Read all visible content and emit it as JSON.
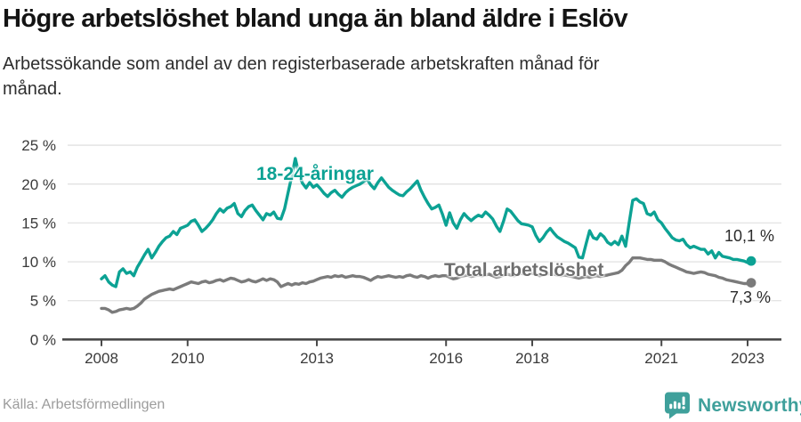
{
  "header": {
    "title": "Högre arbetslöshet bland unga än bland äldre i Eslöv",
    "subtitle_lines": [
      "Arbetssökande som andel av den registerbaserade arbetskraften månad för",
      "månad."
    ]
  },
  "chart_data": {
    "type": "line",
    "title": "Högre arbetslöshet bland unga än bland äldre i Eslöv",
    "subtitle": "Arbetssökande som andel av den registerbaserade arbetskraften månad för månad.",
    "x_start_year": 2008,
    "x_end_label": "feb 2023",
    "months": 182,
    "ylim": [
      0,
      25
    ],
    "grid": true,
    "legend_position": "inline-labels",
    "y_ticks": [
      {
        "value": 0,
        "label": "0 %"
      },
      {
        "value": 5,
        "label": "5 %"
      },
      {
        "value": 10,
        "label": "10 %"
      },
      {
        "value": 15,
        "label": "15 %"
      },
      {
        "value": 20,
        "label": "20 %"
      },
      {
        "value": 25,
        "label": "25 %"
      }
    ],
    "x_ticks": [
      {
        "year": 2008,
        "label": "2008"
      },
      {
        "year": 2010,
        "label": "2010"
      },
      {
        "year": 2013,
        "label": "2013"
      },
      {
        "year": 2016,
        "label": "2016"
      },
      {
        "year": 2018,
        "label": "2018"
      },
      {
        "year": 2021,
        "label": "2021"
      },
      {
        "year": 2023,
        "label": "2023"
      }
    ],
    "series": [
      {
        "name": "18-24-åringar",
        "color": "#0ca294",
        "end_label": "10,1 %",
        "end_value": 10.1,
        "values": [
          7.8,
          8.2,
          7.4,
          7.0,
          6.8,
          8.7,
          9.1,
          8.5,
          8.7,
          8.2,
          9.3,
          10.1,
          10.9,
          11.6,
          10.5,
          11.2,
          12.0,
          12.6,
          13.1,
          13.3,
          13.9,
          13.5,
          14.3,
          14.5,
          14.7,
          15.2,
          15.4,
          14.7,
          13.9,
          14.3,
          14.8,
          15.4,
          16.2,
          16.8,
          16.4,
          16.9,
          17.1,
          17.5,
          16.2,
          15.8,
          16.6,
          17.1,
          17.3,
          16.6,
          16.0,
          15.4,
          16.2,
          16.0,
          16.4,
          15.6,
          15.5,
          16.8,
          18.9,
          21.0,
          23.3,
          21.3,
          20.1,
          19.5,
          20.2,
          19.6,
          19.9,
          19.4,
          18.8,
          18.4,
          18.9,
          19.2,
          18.7,
          18.3,
          18.9,
          19.3,
          19.6,
          19.8,
          20.0,
          20.3,
          20.6,
          19.9,
          19.4,
          20.2,
          20.8,
          20.2,
          19.6,
          19.2,
          18.9,
          18.6,
          18.5,
          19.0,
          19.4,
          19.9,
          20.4,
          19.2,
          18.3,
          17.5,
          16.8,
          17.0,
          17.3,
          16.1,
          14.7,
          16.3,
          15.0,
          14.3,
          15.4,
          16.2,
          15.7,
          15.3,
          15.7,
          16.0,
          15.8,
          16.4,
          16.0,
          15.5,
          14.6,
          13.9,
          15.2,
          16.8,
          16.5,
          15.9,
          15.3,
          14.9,
          14.8,
          14.7,
          14.5,
          13.4,
          12.6,
          13.1,
          13.8,
          14.3,
          13.7,
          13.2,
          12.9,
          12.6,
          12.4,
          12.1,
          11.8,
          10.6,
          10.5,
          12.3,
          14.0,
          13.1,
          12.9,
          13.6,
          13.2,
          12.5,
          12.2,
          12.6,
          12.2,
          13.3,
          12.0,
          15.0,
          17.9,
          18.1,
          17.7,
          17.5,
          16.2,
          16.0,
          16.4,
          15.4,
          15.0,
          14.3,
          13.7,
          13.1,
          12.8,
          12.7,
          12.9,
          12.2,
          11.8,
          12.0,
          11.8,
          11.6,
          11.6,
          11.0,
          11.4,
          10.5,
          11.2,
          10.7,
          10.6,
          10.5,
          10.3,
          10.3,
          10.2,
          10.1,
          9.9,
          10.1
        ]
      },
      {
        "name": "Total arbetslöshet",
        "color": "#7b7b7b",
        "end_label": "7,3 %",
        "end_value": 7.3,
        "values": [
          4.0,
          4.0,
          3.8,
          3.5,
          3.6,
          3.8,
          3.9,
          4.0,
          3.9,
          4.0,
          4.3,
          4.7,
          5.2,
          5.5,
          5.8,
          6.0,
          6.2,
          6.3,
          6.4,
          6.5,
          6.4,
          6.6,
          6.8,
          7.0,
          7.2,
          7.4,
          7.3,
          7.2,
          7.4,
          7.5,
          7.3,
          7.4,
          7.6,
          7.7,
          7.5,
          7.7,
          7.9,
          7.8,
          7.6,
          7.4,
          7.5,
          7.7,
          7.5,
          7.4,
          7.6,
          7.8,
          7.6,
          7.8,
          7.7,
          7.4,
          6.8,
          7.0,
          7.2,
          7.0,
          7.2,
          7.1,
          7.3,
          7.2,
          7.4,
          7.5,
          7.7,
          7.9,
          8.0,
          8.1,
          8.0,
          8.2,
          8.1,
          8.2,
          8.0,
          8.1,
          8.2,
          8.1,
          8.1,
          8.0,
          7.8,
          7.6,
          7.9,
          8.1,
          8.0,
          8.1,
          8.2,
          8.1,
          8.0,
          8.1,
          8.0,
          8.2,
          8.3,
          8.1,
          8.0,
          8.2,
          8.1,
          7.9,
          8.1,
          8.2,
          8.1,
          8.2,
          8.2,
          8.0,
          7.8,
          7.9,
          8.1,
          8.2,
          8.3,
          8.1,
          8.2,
          8.3,
          8.2,
          8.3,
          8.4,
          8.2,
          8.0,
          8.1,
          8.3,
          8.4,
          8.3,
          8.2,
          8.4,
          8.5,
          8.4,
          8.5,
          8.5,
          8.4,
          8.2,
          8.3,
          8.4,
          8.5,
          8.4,
          8.3,
          8.2,
          8.3,
          8.2,
          8.1,
          8.0,
          7.9,
          8.0,
          8.1,
          8.0,
          8.1,
          8.2,
          8.1,
          8.2,
          8.3,
          8.4,
          8.5,
          8.6,
          8.9,
          9.5,
          9.9,
          10.5,
          10.5,
          10.5,
          10.4,
          10.3,
          10.3,
          10.2,
          10.2,
          10.2,
          10.0,
          9.7,
          9.5,
          9.3,
          9.1,
          8.9,
          8.7,
          8.6,
          8.5,
          8.6,
          8.7,
          8.6,
          8.4,
          8.3,
          8.2,
          8.0,
          7.9,
          7.7,
          7.6,
          7.5,
          7.4,
          7.3,
          7.2,
          7.2,
          7.3
        ]
      }
    ]
  },
  "colors": {
    "accent_teal": "#0ca294",
    "line_gray": "#7b7b7b",
    "grid": "#e4e4e4",
    "axis": "#4a4a4a",
    "tick_text": "#3a3a3a",
    "brand_teal": "#3fa09b"
  },
  "footer": {
    "source": "Källa: Arbetsförmedlingen",
    "brand": "Newsworthy"
  }
}
